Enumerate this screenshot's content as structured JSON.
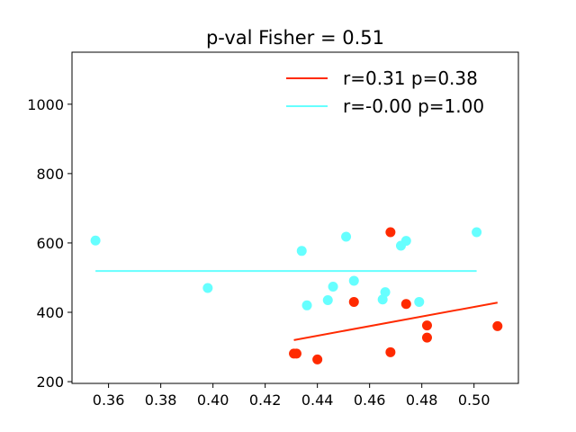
{
  "chart_data": {
    "type": "scatter",
    "title": "p-val Fisher = 0.51",
    "xlabel": "",
    "ylabel": "",
    "xlim": [
      0.346,
      0.517
    ],
    "ylim": [
      195,
      1150
    ],
    "xticks": [
      0.36,
      0.38,
      0.4,
      0.42,
      0.44,
      0.46,
      0.48,
      0.5
    ],
    "xtick_labels": [
      "0.36",
      "0.38",
      "0.40",
      "0.42",
      "0.44",
      "0.46",
      "0.48",
      "0.50"
    ],
    "yticks": [
      200,
      400,
      600,
      800,
      1000
    ],
    "ytick_labels": [
      "200",
      "400",
      "600",
      "800",
      "1000"
    ],
    "grid": false,
    "legend_position": "top-right",
    "series": [
      {
        "name": "r=0.31 p=0.38",
        "color": "#ff2a00",
        "points": [
          [
            0.431,
            281
          ],
          [
            0.432,
            281
          ],
          [
            0.44,
            264
          ],
          [
            0.454,
            430
          ],
          [
            0.468,
            631
          ],
          [
            0.468,
            285
          ],
          [
            0.474,
            424
          ],
          [
            0.482,
            362
          ],
          [
            0.482,
            327
          ],
          [
            0.509,
            360
          ]
        ],
        "fit_line": [
          [
            0.431,
            320
          ],
          [
            0.509,
            428
          ]
        ]
      },
      {
        "name": "r=-0.00 p=1.00",
        "color": "#66ffff",
        "points": [
          [
            0.355,
            607
          ],
          [
            0.398,
            470
          ],
          [
            0.434,
            577
          ],
          [
            0.436,
            420
          ],
          [
            0.444,
            435
          ],
          [
            0.446,
            474
          ],
          [
            0.451,
            618
          ],
          [
            0.454,
            491
          ],
          [
            0.465,
            437
          ],
          [
            0.466,
            458
          ],
          [
            0.472,
            592
          ],
          [
            0.474,
            606
          ],
          [
            0.479,
            430
          ],
          [
            0.501,
            631
          ]
        ],
        "fit_line": [
          [
            0.355,
            519
          ],
          [
            0.501,
            519
          ]
        ]
      }
    ]
  }
}
